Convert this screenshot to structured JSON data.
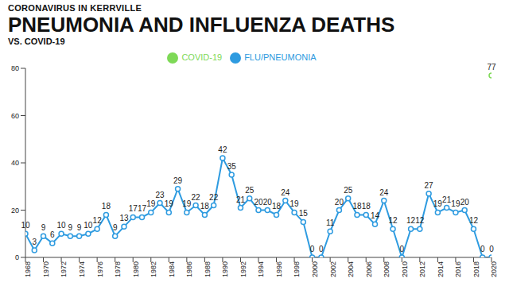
{
  "chart_data": {
    "type": "line",
    "supertitle": "CORONAVIRUS IN KERRVILLE",
    "title": "PNEUMONIA AND INFLUENZA DEATHS",
    "subtitle": "VS. COVID-19",
    "x": [
      1968,
      1969,
      1970,
      1971,
      1972,
      1973,
      1974,
      1975,
      1976,
      1977,
      1978,
      1979,
      1980,
      1981,
      1982,
      1983,
      1984,
      1985,
      1986,
      1987,
      1988,
      1989,
      1990,
      1991,
      1992,
      1993,
      1994,
      1995,
      1996,
      1997,
      1998,
      1999,
      2000,
      2001,
      2002,
      2003,
      2004,
      2005,
      2006,
      2007,
      2008,
      2009,
      2010,
      2011,
      2012,
      2013,
      2014,
      2015,
      2016,
      2017,
      2018,
      2019,
      2020
    ],
    "series": [
      {
        "name": "FLU/PNEUMONIA",
        "color": "#2e9be0",
        "marker": "circle",
        "line_style": "solid",
        "values": [
          10,
          3,
          9,
          6,
          10,
          9,
          9,
          10,
          12,
          18,
          9,
          13,
          17,
          17,
          19,
          23,
          19,
          29,
          19,
          22,
          18,
          22,
          42,
          35,
          21,
          25,
          20,
          20,
          18,
          24,
          19,
          15,
          0,
          0,
          11,
          20,
          25,
          18,
          18,
          14,
          24,
          12,
          0,
          12,
          12,
          27,
          19,
          21,
          19,
          20,
          12,
          0,
          0
        ]
      },
      {
        "name": "COVID-19",
        "color": "#7ed957",
        "marker": "circle",
        "line_style": "solid",
        "values": [
          null,
          null,
          null,
          null,
          null,
          null,
          null,
          null,
          null,
          null,
          null,
          null,
          null,
          null,
          null,
          null,
          null,
          null,
          null,
          null,
          null,
          null,
          null,
          null,
          null,
          null,
          null,
          null,
          null,
          null,
          null,
          null,
          null,
          null,
          null,
          null,
          null,
          null,
          null,
          null,
          null,
          null,
          null,
          null,
          null,
          null,
          null,
          null,
          null,
          null,
          null,
          null,
          77
        ]
      }
    ],
    "xlim": [
      1968,
      2020
    ],
    "xticks": [
      1968,
      1970,
      1972,
      1974,
      1976,
      1978,
      1980,
      1982,
      1984,
      1986,
      1988,
      1990,
      1992,
      1994,
      1996,
      1998,
      2000,
      2002,
      2004,
      2006,
      2008,
      2010,
      2012,
      2014,
      2016,
      2018,
      2020
    ],
    "ylim": [
      0,
      80
    ],
    "yticks": [
      0,
      20,
      40,
      60,
      80
    ],
    "grid": false,
    "legend": "top",
    "data_labels": true
  }
}
